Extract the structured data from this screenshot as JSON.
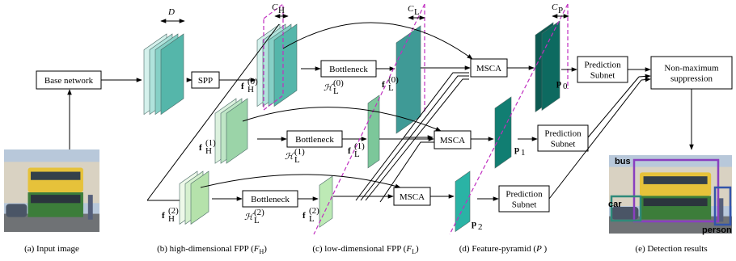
{
  "boxes": {
    "base_network": "Base network",
    "spp": "SPP",
    "bottlenecks": [
      "Bottleneck",
      "Bottleneck",
      "Bottleneck"
    ],
    "msca": [
      "MSCA",
      "MSCA",
      "MSCA"
    ],
    "prediction_subnets": [
      {
        "line1": "Prediction",
        "line2": "Subnet"
      },
      {
        "line1": "Prediction",
        "line2": "Subnet"
      },
      {
        "line1": "Prediction",
        "line2": "Subnet"
      }
    ],
    "nms": {
      "line1": "Non-maximum",
      "line2": "suppression"
    }
  },
  "dimension_labels": [
    {
      "base": "D"
    },
    {
      "base": "C",
      "sub": "H"
    },
    {
      "base": "C",
      "sub": "L"
    },
    {
      "base": "C",
      "sub": "P"
    }
  ],
  "features_high": [
    {
      "base": "f",
      "sub": "H",
      "sup": "(0)"
    },
    {
      "base": "f",
      "sub": "H",
      "sup": "(1)"
    },
    {
      "base": "f",
      "sub": "H",
      "sup": "(2)"
    }
  ],
  "bottleneck_labels": [
    {
      "base": "ℋ",
      "sub": "L",
      "sup": "(0)"
    },
    {
      "base": "ℋ",
      "sub": "L",
      "sup": "(1)"
    },
    {
      "base": "ℋ",
      "sub": "L",
      "sup": "(2)"
    }
  ],
  "features_low": [
    {
      "base": "f",
      "sub": "L",
      "sup": "(0)"
    },
    {
      "base": "f",
      "sub": "L",
      "sup": "(1)"
    },
    {
      "base": "f",
      "sub": "L",
      "sup": "(2)"
    }
  ],
  "pyramid_labels": [
    {
      "base": "p",
      "sub": "0"
    },
    {
      "base": "p",
      "sub": "1"
    },
    {
      "base": "p",
      "sub": "2"
    }
  ],
  "detection_labels": [
    "bus",
    "car",
    "person"
  ],
  "captions": [
    {
      "text": "(a) Input image"
    },
    {
      "text": "(b) high-dimensional FPP (",
      "var": "F",
      "sub": "H",
      "end": ")"
    },
    {
      "text": "(c) low-dimensional FPP (",
      "var": "F",
      "sub": "L",
      "end": ")"
    },
    {
      "text": "(d) Feature-pyramid (",
      "var": "P",
      "end": " )"
    },
    {
      "text": "(e) Detection results"
    }
  ]
}
